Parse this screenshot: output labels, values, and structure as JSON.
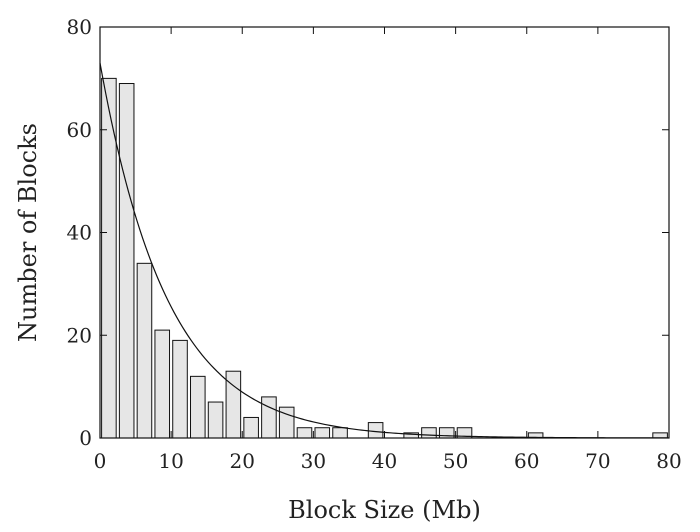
{
  "chart_data": {
    "type": "bar",
    "title": "",
    "xlabel": "Block Size (Mb)",
    "ylabel": "Number of Blocks",
    "xlim": [
      0,
      80
    ],
    "ylim": [
      0,
      80
    ],
    "xticks": [
      0,
      10,
      20,
      30,
      40,
      50,
      60,
      70,
      80
    ],
    "yticks": [
      0,
      20,
      40,
      60,
      80
    ],
    "grid": false,
    "bin_width": 2.5,
    "bins": [
      {
        "x": 1.25,
        "y": 70
      },
      {
        "x": 3.75,
        "y": 69
      },
      {
        "x": 6.25,
        "y": 34
      },
      {
        "x": 8.75,
        "y": 21
      },
      {
        "x": 11.25,
        "y": 19
      },
      {
        "x": 13.75,
        "y": 12
      },
      {
        "x": 16.25,
        "y": 7
      },
      {
        "x": 18.75,
        "y": 13
      },
      {
        "x": 21.25,
        "y": 4
      },
      {
        "x": 23.75,
        "y": 8
      },
      {
        "x": 26.25,
        "y": 6
      },
      {
        "x": 28.75,
        "y": 2
      },
      {
        "x": 31.25,
        "y": 2
      },
      {
        "x": 33.75,
        "y": 2
      },
      {
        "x": 38.75,
        "y": 3
      },
      {
        "x": 43.75,
        "y": 1
      },
      {
        "x": 46.25,
        "y": 2
      },
      {
        "x": 48.75,
        "y": 2
      },
      {
        "x": 51.25,
        "y": 2
      },
      {
        "x": 61.25,
        "y": 1
      },
      {
        "x": 78.75,
        "y": 1
      }
    ],
    "fit_curve": {
      "type": "exponential",
      "y0": 73,
      "decay_constant": 0.105,
      "x_range": [
        0,
        80
      ]
    }
  }
}
